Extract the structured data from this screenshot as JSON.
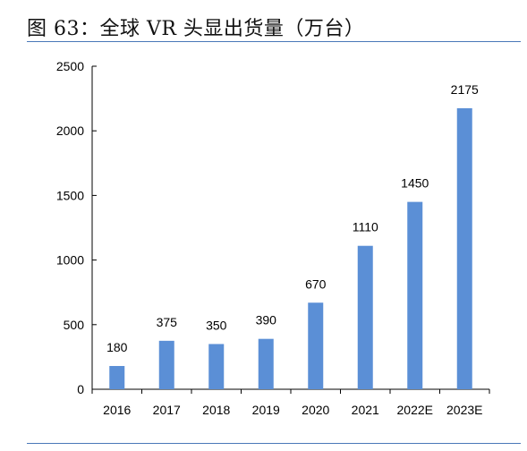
{
  "title": "图 63：全球 VR 头显出货量（万台）",
  "colors": {
    "bar": "#5b8fd6",
    "rule": "#4a78b8",
    "axis": "#000000"
  },
  "chart_data": {
    "type": "bar",
    "title": "",
    "xlabel": "",
    "ylabel": "",
    "categories": [
      "2016",
      "2017",
      "2018",
      "2019",
      "2020",
      "2021",
      "2022E",
      "2023E"
    ],
    "values": [
      180,
      375,
      350,
      390,
      670,
      1110,
      1450,
      2175
    ],
    "ylim": [
      0,
      2500
    ],
    "yticks": [
      0,
      500,
      1000,
      1500,
      2000,
      2500
    ],
    "grid": false,
    "legend": "none",
    "data_labels": true
  }
}
